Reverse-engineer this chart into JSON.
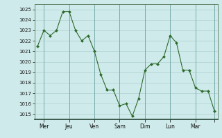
{
  "x_values": [
    0,
    1,
    2,
    3,
    4,
    5,
    6,
    7,
    8,
    9,
    10,
    11,
    12,
    13,
    14,
    15,
    16,
    17,
    18,
    19,
    20,
    21,
    22,
    23,
    24,
    25,
    26,
    27,
    28
  ],
  "y_values": [
    1021.5,
    1023.0,
    1022.5,
    1023.0,
    1024.8,
    1024.8,
    1023.0,
    1022.0,
    1022.5,
    1021.0,
    1018.8,
    1017.3,
    1017.3,
    1015.8,
    1016.0,
    1014.8,
    1016.5,
    1019.2,
    1019.8,
    1019.8,
    1020.5,
    1022.5,
    1021.8,
    1019.2,
    1019.2,
    1017.5,
    1017.2,
    1017.2,
    1015.3
  ],
  "day_ticks": [
    1,
    5,
    9,
    13,
    17,
    21,
    25,
    28
  ],
  "day_labels": [
    "Mer",
    "Jeu",
    "Ven",
    "Sam",
    "Dim",
    "Lun",
    "Mar",
    ""
  ],
  "ytick_min": 1015,
  "ytick_max": 1025,
  "ytick_step": 1,
  "line_color": "#2d6a2d",
  "marker_color": "#2d6a2d",
  "bg_color": "#ceeaea",
  "grid_color": "#a8c8c8",
  "dark_grid_color": "#7aacac"
}
